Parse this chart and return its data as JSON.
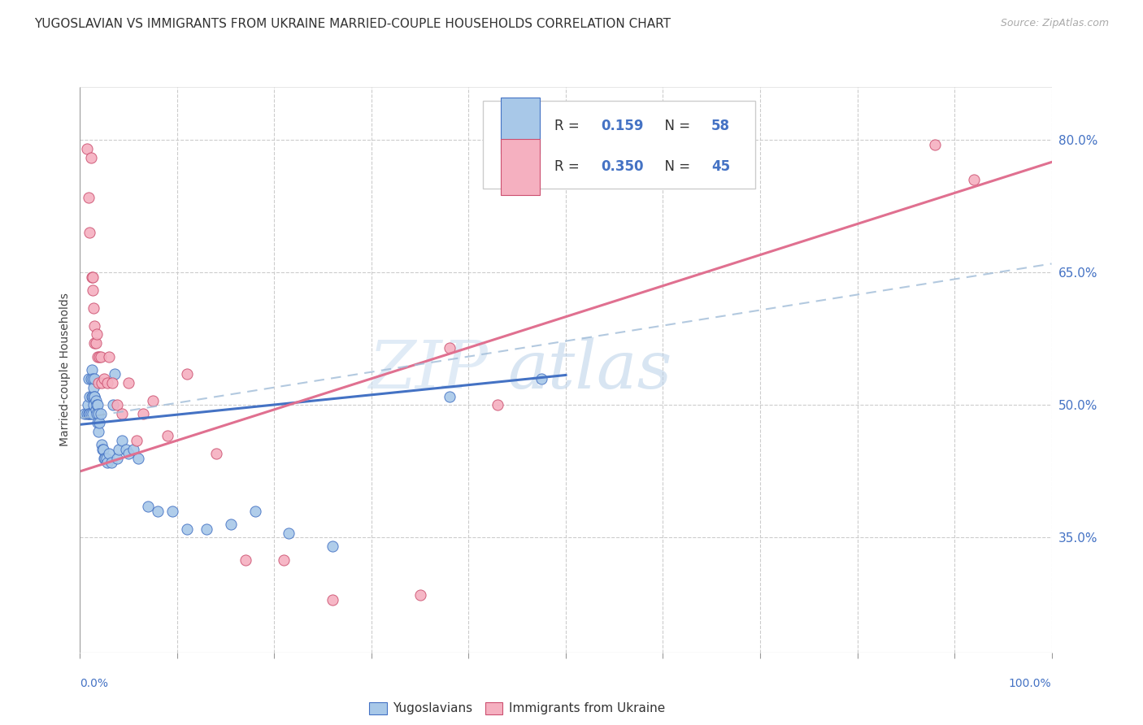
{
  "title": "YUGOSLAVIAN VS IMMIGRANTS FROM UKRAINE MARRIED-COUPLE HOUSEHOLDS CORRELATION CHART",
  "source": "Source: ZipAtlas.com",
  "ylabel": "Married-couple Households",
  "ytick_labels": [
    "35.0%",
    "50.0%",
    "65.0%",
    "80.0%"
  ],
  "ytick_values": [
    0.35,
    0.5,
    0.65,
    0.8
  ],
  "xlim": [
    0.0,
    1.0
  ],
  "ylim": [
    0.22,
    0.86
  ],
  "color_blue": "#a8c8e8",
  "color_pink": "#f5b0c0",
  "line_blue": "#4472c4",
  "line_pink": "#e07090",
  "line_dashed_color": "#a0bcd8",
  "watermark_zip": "ZIP",
  "watermark_atlas": "atlas",
  "series1_label": "Yugoslavians",
  "series2_label": "Immigrants from Ukraine",
  "blue_x": [
    0.005,
    0.007,
    0.008,
    0.009,
    0.009,
    0.01,
    0.01,
    0.011,
    0.011,
    0.012,
    0.012,
    0.013,
    0.013,
    0.013,
    0.014,
    0.014,
    0.015,
    0.015,
    0.015,
    0.016,
    0.016,
    0.017,
    0.017,
    0.018,
    0.018,
    0.019,
    0.019,
    0.02,
    0.021,
    0.022,
    0.023,
    0.024,
    0.025,
    0.026,
    0.027,
    0.028,
    0.03,
    0.032,
    0.034,
    0.036,
    0.038,
    0.04,
    0.043,
    0.047,
    0.05,
    0.055,
    0.06,
    0.07,
    0.08,
    0.095,
    0.11,
    0.13,
    0.155,
    0.18,
    0.215,
    0.26,
    0.38,
    0.475
  ],
  "blue_y": [
    0.49,
    0.49,
    0.5,
    0.53,
    0.49,
    0.51,
    0.49,
    0.53,
    0.49,
    0.54,
    0.51,
    0.53,
    0.51,
    0.49,
    0.52,
    0.5,
    0.51,
    0.53,
    0.51,
    0.505,
    0.495,
    0.5,
    0.49,
    0.48,
    0.5,
    0.49,
    0.47,
    0.48,
    0.49,
    0.455,
    0.45,
    0.45,
    0.44,
    0.44,
    0.44,
    0.435,
    0.445,
    0.435,
    0.5,
    0.535,
    0.44,
    0.45,
    0.46,
    0.45,
    0.445,
    0.45,
    0.44,
    0.385,
    0.38,
    0.38,
    0.36,
    0.36,
    0.365,
    0.38,
    0.355,
    0.34,
    0.51,
    0.53
  ],
  "pink_x": [
    0.007,
    0.009,
    0.01,
    0.011,
    0.012,
    0.013,
    0.013,
    0.014,
    0.015,
    0.015,
    0.016,
    0.017,
    0.018,
    0.019,
    0.02,
    0.021,
    0.022,
    0.025,
    0.028,
    0.03,
    0.033,
    0.038,
    0.043,
    0.05,
    0.058,
    0.065,
    0.075,
    0.09,
    0.11,
    0.14,
    0.17,
    0.21,
    0.26,
    0.35,
    0.38,
    0.43,
    0.88,
    0.92
  ],
  "pink_y": [
    0.79,
    0.735,
    0.695,
    0.78,
    0.645,
    0.645,
    0.63,
    0.61,
    0.59,
    0.57,
    0.57,
    0.58,
    0.555,
    0.525,
    0.555,
    0.555,
    0.525,
    0.53,
    0.525,
    0.555,
    0.525,
    0.5,
    0.49,
    0.525,
    0.46,
    0.49,
    0.505,
    0.465,
    0.535,
    0.445,
    0.325,
    0.325,
    0.28,
    0.285,
    0.565,
    0.5,
    0.795,
    0.755
  ],
  "blue_line_x0": 0.0,
  "blue_line_x1": 0.5,
  "blue_line_y0": 0.478,
  "blue_line_y1": 0.534,
  "pink_line_x0": 0.0,
  "pink_line_x1": 1.0,
  "pink_line_y0": 0.425,
  "pink_line_y1": 0.775,
  "dashed_line_x0": 0.0,
  "dashed_line_x1": 1.0,
  "dashed_line_y0": 0.485,
  "dashed_line_y1": 0.66
}
